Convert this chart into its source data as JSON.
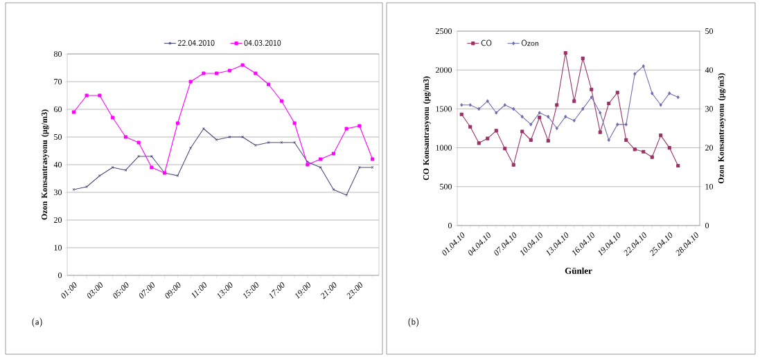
{
  "chart_data": [
    {
      "type": "line",
      "ylabel": "Ozon  Konsantrasyonu (µg/m3)",
      "annotations": [
        "(a)"
      ],
      "categories": [
        "01:00",
        null,
        "03:00",
        null,
        "05:00",
        null,
        "07:00",
        null,
        "09:00",
        null,
        "11:00",
        null,
        "13:00",
        null,
        "15:00",
        null,
        "17:00",
        null,
        "19:00",
        null,
        "21:00",
        null,
        "23:00",
        null
      ],
      "series": [
        {
          "name": "22.04.2010",
          "color": "#4b4b7d",
          "marker": "cross",
          "values": [
            31,
            32,
            36,
            39,
            38,
            43,
            43,
            37,
            36,
            46,
            53,
            49,
            50,
            50,
            47,
            48,
            48,
            48,
            41,
            39,
            31,
            29,
            39,
            39
          ]
        },
        {
          "name": "04.03.2010",
          "color": "#ff00ff",
          "marker": "square",
          "values": [
            59,
            65,
            65,
            57,
            50,
            48,
            39,
            37,
            55,
            70,
            73,
            73,
            74,
            76,
            73,
            69,
            63,
            55,
            40,
            42,
            44,
            53,
            54,
            42
          ]
        }
      ],
      "ylim": [
        0,
        80
      ],
      "yticks": [
        0,
        10,
        20,
        30,
        40,
        50,
        60,
        70,
        80
      ],
      "grid": "y",
      "legend": "top"
    },
    {
      "type": "line",
      "xlabel": "Günler",
      "ylabel": "CO Konsantrasyonu (µg/m3)",
      "y2label": "Ozon Konsantrasyonu (µg/m3)",
      "annotations": [
        "(b)"
      ],
      "categories": [
        "01.04.10",
        null,
        null,
        "04.04.10",
        null,
        null,
        "07.04.10",
        null,
        null,
        "10.04.10",
        null,
        null,
        "13.04.10",
        null,
        null,
        "16.04.10",
        null,
        null,
        "19.04.10",
        null,
        null,
        "22.04.10",
        null,
        null,
        "25.04.10",
        null,
        null,
        "28.04.10"
      ],
      "series": [
        {
          "name": "CO",
          "color": "#993366",
          "marker": "square",
          "values": [
            1430,
            1270,
            1060,
            1120,
            1220,
            990,
            780,
            1210,
            1100,
            1390,
            1090,
            1550,
            2220,
            1600,
            2150,
            1750,
            1200,
            1570,
            1710,
            1100,
            980,
            950,
            880,
            1160,
            1000,
            770,
            null,
            null
          ]
        },
        {
          "name": "Ozon",
          "color": "#7070b0",
          "marker": "diamond",
          "axis": "y2",
          "values": [
            31,
            31,
            30,
            32,
            29,
            31,
            30,
            28,
            26,
            29,
            28,
            25,
            28,
            27,
            30,
            33,
            29,
            22,
            26,
            26,
            39,
            41,
            34,
            31,
            34,
            33,
            null,
            null
          ]
        }
      ],
      "ylim": [
        0,
        2500
      ],
      "yticks": [
        0,
        500,
        1000,
        1500,
        2000,
        2500
      ],
      "y2lim": [
        0,
        50
      ],
      "y2ticks": [
        0,
        10,
        20,
        30,
        40,
        50
      ],
      "grid": "y",
      "legend": "top left"
    }
  ]
}
